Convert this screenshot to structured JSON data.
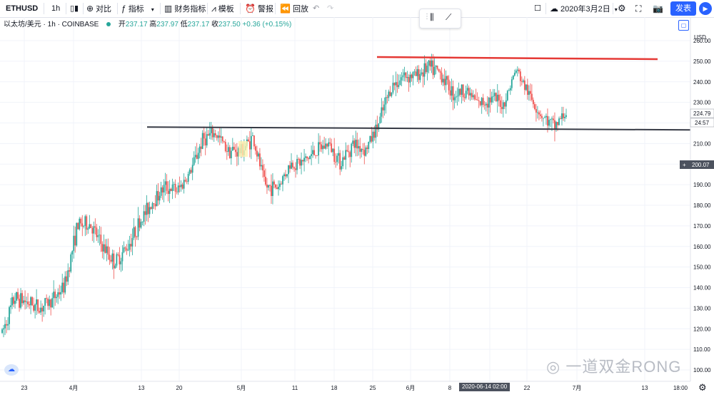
{
  "toolbar": {
    "symbol": "ETHUSD",
    "interval": "1h",
    "candle_icon": "candles-icon",
    "compare": "对比",
    "indicators": "指标",
    "financials": "财务指标",
    "templates": "模板",
    "alert": "警报",
    "replay": "回放",
    "date": "2020年3月2日",
    "publish": "发表"
  },
  "legend": {
    "name": "以太坊/美元 · 1h · COINBASE",
    "open_label": "开",
    "open": "237.17",
    "high_label": "高",
    "high": "237.97",
    "low_label": "低",
    "low": "237.17",
    "close_label": "收",
    "close": "237.50",
    "change": "+0.36 (+0.15%)"
  },
  "axis": {
    "currency": "USD",
    "price_ticks": [
      "260.00",
      "250.00",
      "240.00",
      "230.00",
      "220.00",
      "210.00",
      "200.00",
      "190.00",
      "180.00",
      "170.00",
      "160.00",
      "150.00",
      "140.00",
      "130.00",
      "120.00",
      "110.00",
      "100.00"
    ],
    "time_ticks": [
      "23",
      "4月",
      "13",
      "20",
      "5月",
      "11",
      "18",
      "25",
      "6月",
      "8",
      "15",
      "22",
      "7月",
      "13",
      "18:00"
    ],
    "last_price": "224.79",
    "countdown": "24:57",
    "crosshair_price": "200.07",
    "crosshair_date": "2020-06-14  02:00"
  },
  "watermark": "一道双金RONG",
  "colors": {
    "up": "#26a69a",
    "down": "#ef5350",
    "resistance": "#e53935",
    "support": "#363a45",
    "accent": "#2962ff"
  },
  "chart_data": {
    "type": "candlestick",
    "x_ticks": [
      "23",
      "4月",
      "13",
      "20",
      "5月",
      "11",
      "18",
      "25",
      "6月",
      "8",
      "15",
      "22",
      "7月",
      "13"
    ],
    "ylim": [
      100,
      262
    ],
    "close_path": [
      {
        "x": "3月23日",
        "y": 118
      },
      {
        "x": "3月25日",
        "y": 135
      },
      {
        "x": "3月27日",
        "y": 133
      },
      {
        "x": "3月30日",
        "y": 130
      },
      {
        "x": "4月1日",
        "y": 134
      },
      {
        "x": "4月3日",
        "y": 141
      },
      {
        "x": "4月6日",
        "y": 170
      },
      {
        "x": "4月8日",
        "y": 171
      },
      {
        "x": "4月10日",
        "y": 160
      },
      {
        "x": "4月13日",
        "y": 152
      },
      {
        "x": "4月15日",
        "y": 160
      },
      {
        "x": "4月17日",
        "y": 172
      },
      {
        "x": "4月20日",
        "y": 182
      },
      {
        "x": "4月22日",
        "y": 189
      },
      {
        "x": "4月24日",
        "y": 187
      },
      {
        "x": "4月27日",
        "y": 196
      },
      {
        "x": "4月29日",
        "y": 212
      },
      {
        "x": "5月1日",
        "y": 215
      },
      {
        "x": "5月4日",
        "y": 207
      },
      {
        "x": "5月6日",
        "y": 206
      },
      {
        "x": "5月8日",
        "y": 213
      },
      {
        "x": "5月10日",
        "y": 189
      },
      {
        "x": "5月12日",
        "y": 189
      },
      {
        "x": "5月14日",
        "y": 200
      },
      {
        "x": "5月16日",
        "y": 201
      },
      {
        "x": "5月18日",
        "y": 206
      },
      {
        "x": "5月20日",
        "y": 210
      },
      {
        "x": "5月22日",
        "y": 201
      },
      {
        "x": "5月24日",
        "y": 210
      },
      {
        "x": "5月27日",
        "y": 207
      },
      {
        "x": "5月29日",
        "y": 219
      },
      {
        "x": "6月1日",
        "y": 237
      },
      {
        "x": "6月3日",
        "y": 243
      },
      {
        "x": "6月5日",
        "y": 243
      },
      {
        "x": "6月8日",
        "y": 247
      },
      {
        "x": "6月10日",
        "y": 244
      },
      {
        "x": "6月12日",
        "y": 234
      },
      {
        "x": "6月14日",
        "y": 236
      },
      {
        "x": "6月16日",
        "y": 229
      },
      {
        "x": "6月18日",
        "y": 232
      },
      {
        "x": "6月21日",
        "y": 229
      },
      {
        "x": "6月23日",
        "y": 246
      },
      {
        "x": "6月25日",
        "y": 234
      },
      {
        "x": "6月27日",
        "y": 224
      },
      {
        "x": "6月28日",
        "y": 218
      },
      {
        "x": "6月29日",
        "y": 225
      }
    ],
    "lines": [
      {
        "name": "resistance",
        "y": 251.5
      },
      {
        "name": "support",
        "y": 217.5
      }
    ]
  }
}
